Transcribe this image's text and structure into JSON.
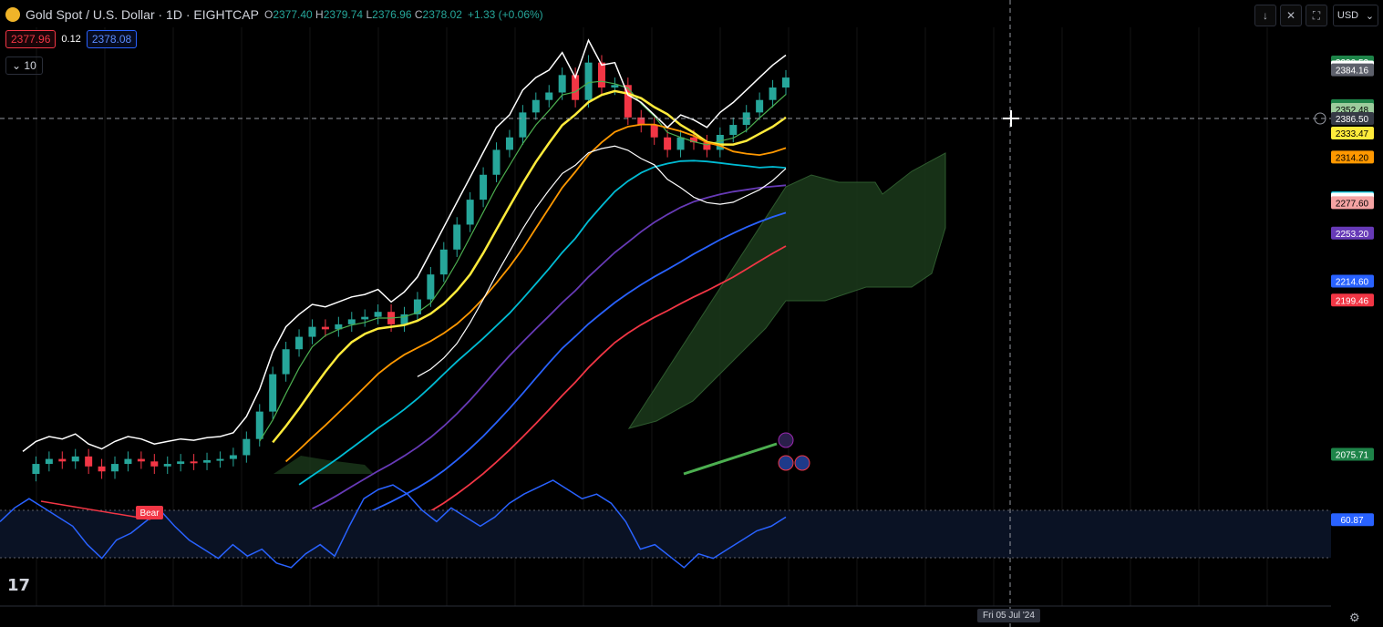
{
  "header": {
    "symbol": "Gold Spot / U.S. Dollar · 1D · EIGHTCAP",
    "open_label": "O",
    "open": "2377.40",
    "high_label": "H",
    "high": "2379.74",
    "low_label": "L",
    "low": "2376.96",
    "close_label": "C",
    "close": "2378.02",
    "change": "+1.33 (+0.06%)"
  },
  "trade": {
    "sell": "2377.96",
    "spread": "0.12",
    "buy": "2378.08"
  },
  "indicators_toggle": "10",
  "toolbar": {
    "currency": "USD"
  },
  "time_badge": "Fri 05 Jul '24",
  "bear_label": "Bear",
  "rsi_value": "60.87",
  "crosshair_price": "2386.50",
  "price_labels": [
    {
      "text": "2390.52",
      "bg": "#1e8449",
      "fg": "#ffffff",
      "value": 2390.52
    },
    {
      "text": "2386.43",
      "bg": "#ffffff",
      "fg": "#000000",
      "value": 2386.43
    },
    {
      "text": "2384.16",
      "bg": "#5d606b",
      "fg": "#ffffff",
      "value": 2384.16
    },
    {
      "text": "2355.46",
      "bg": "#1e8449",
      "fg": "#ffffff",
      "value": 2355.46
    },
    {
      "text": "2352.48",
      "bg": "#9ccc9c",
      "fg": "#000000",
      "value": 2352.48
    },
    {
      "text": "2333.47",
      "bg": "#ffeb3b",
      "fg": "#000000",
      "value": 2333.47
    },
    {
      "text": "2314.20",
      "bg": "#ff9800",
      "fg": "#000000",
      "value": 2314.2
    },
    {
      "text": "2281.57",
      "bg": "#00bcd4",
      "fg": "#000000",
      "value": 2281.57
    },
    {
      "text": "2280.52",
      "bg": "#ffffff",
      "fg": "#000000",
      "value": 2280.52
    },
    {
      "text": "2277.60",
      "bg": "#f5a3a3",
      "fg": "#000000",
      "value": 2277.6
    },
    {
      "text": "2253.20",
      "bg": "#673ab7",
      "fg": "#ffffff",
      "value": 2253.2
    },
    {
      "text": "2214.60",
      "bg": "#2962ff",
      "fg": "#ffffff",
      "value": 2214.6
    },
    {
      "text": "2199.46",
      "bg": "#f23645",
      "fg": "#ffffff",
      "value": 2199.46
    },
    {
      "text": "2075.71",
      "bg": "#1e8449",
      "fg": "#ffffff",
      "value": 2075.71
    }
  ],
  "colors": {
    "up": "#26a69a",
    "down": "#f23645",
    "ema_yellow": "#ffeb3b",
    "ema_orange": "#ff9800",
    "ema_cyan": "#00bcd4",
    "ema_purple": "#673ab7",
    "ema_blue": "#2962ff",
    "ema_red": "#f23645",
    "bb": "#ffffff",
    "cloud": "#1b3a1b",
    "rsi": "#2962ff"
  },
  "chart_data": {
    "type": "line",
    "title": "Gold Spot / U.S. Dollar · 1D · EIGHTCAP",
    "ylim": [
      2060,
      2400
    ],
    "price_path": [
      2060,
      2068,
      2072,
      2070,
      2074,
      2066,
      2062,
      2068,
      2072,
      2070,
      2066,
      2068,
      2070,
      2069,
      2071,
      2072,
      2075,
      2088,
      2110,
      2140,
      2160,
      2170,
      2178,
      2176,
      2180,
      2184,
      2186,
      2190,
      2180,
      2188,
      2200,
      2220,
      2240,
      2260,
      2280,
      2300,
      2320,
      2330,
      2350,
      2360,
      2366,
      2380,
      2360,
      2390,
      2370,
      2372,
      2346,
      2340,
      2330,
      2320,
      2330,
      2326,
      2320,
      2332,
      2340,
      2350,
      2360,
      2370,
      2378
    ],
    "rsi_path": [
      60,
      66,
      70,
      66,
      62,
      58,
      50,
      44,
      52,
      55,
      60,
      65,
      58,
      52,
      48,
      44,
      50,
      45,
      48,
      42,
      40,
      46,
      50,
      45,
      58,
      70,
      74,
      76,
      72,
      65,
      60,
      66,
      62,
      58,
      62,
      68,
      72,
      75,
      78,
      74,
      70,
      72,
      68,
      60,
      48,
      50,
      45,
      40,
      46,
      44,
      48,
      52,
      56,
      58,
      62
    ]
  }
}
